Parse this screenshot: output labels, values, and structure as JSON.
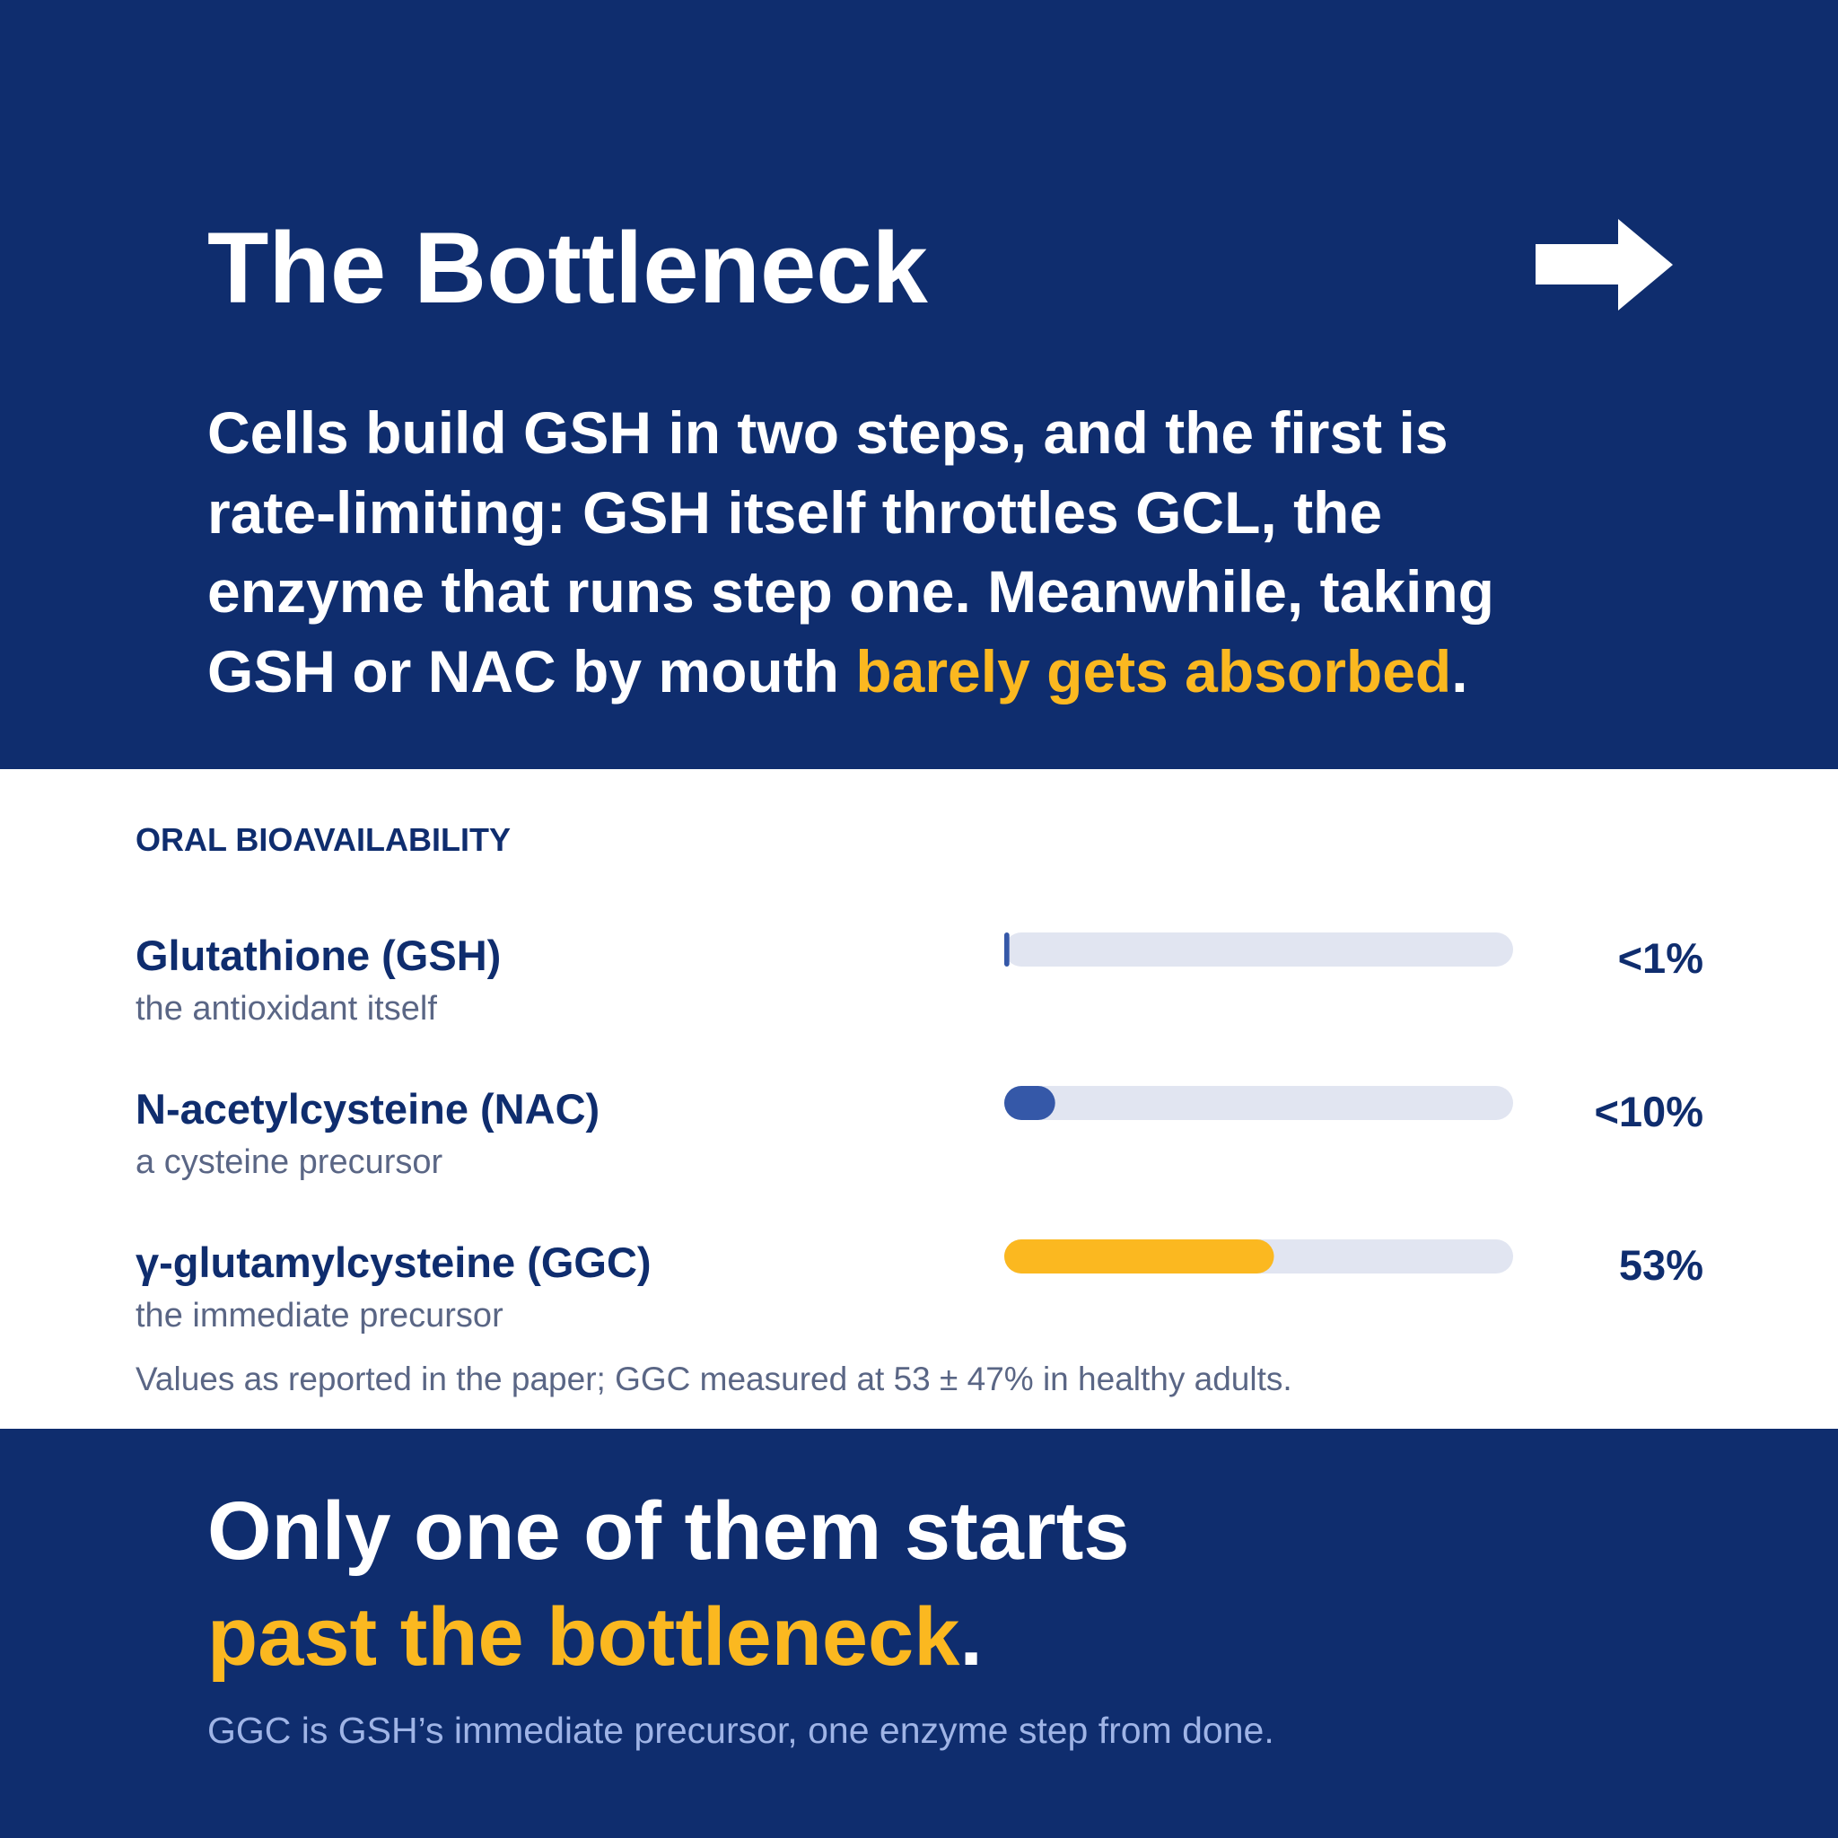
{
  "title": "The Bottleneck",
  "intro": {
    "lines": [
      "Cells build GSH in two steps, and the first is",
      "rate-limiting: GSH itself throttles GCL, the",
      "enzyme that runs step one. Meanwhile, taking",
      "GSH or NAC by mouth"
    ],
    "highlight": "barely gets absorbed",
    "end": "."
  },
  "chart_data": {
    "type": "bar",
    "title": "ORAL BIOAVAILABILITY",
    "categories": [
      "Glutathione (GSH)",
      "N-acetylcysteine (NAC)",
      "γ-glutamylcysteine (GGC)"
    ],
    "descriptions": [
      "the antioxidant itself",
      "a cysteine precursor",
      "the immediate precursor"
    ],
    "values": [
      1,
      10,
      53
    ],
    "value_labels": [
      "<1%",
      "<10%",
      "53%"
    ],
    "colors": [
      "#3558a8",
      "#3558a8",
      "#fbb820"
    ],
    "xlim": [
      0,
      100
    ],
    "note": "Values as reported in the paper; GGC measured at 53 ± 47% in healthy adults."
  },
  "conclusion": {
    "line1": "Only one of them starts",
    "highlight": "past the bottleneck",
    "end": ".",
    "subtitle": "GGC is GSH’s immediate precursor, one enzyme step from done."
  }
}
